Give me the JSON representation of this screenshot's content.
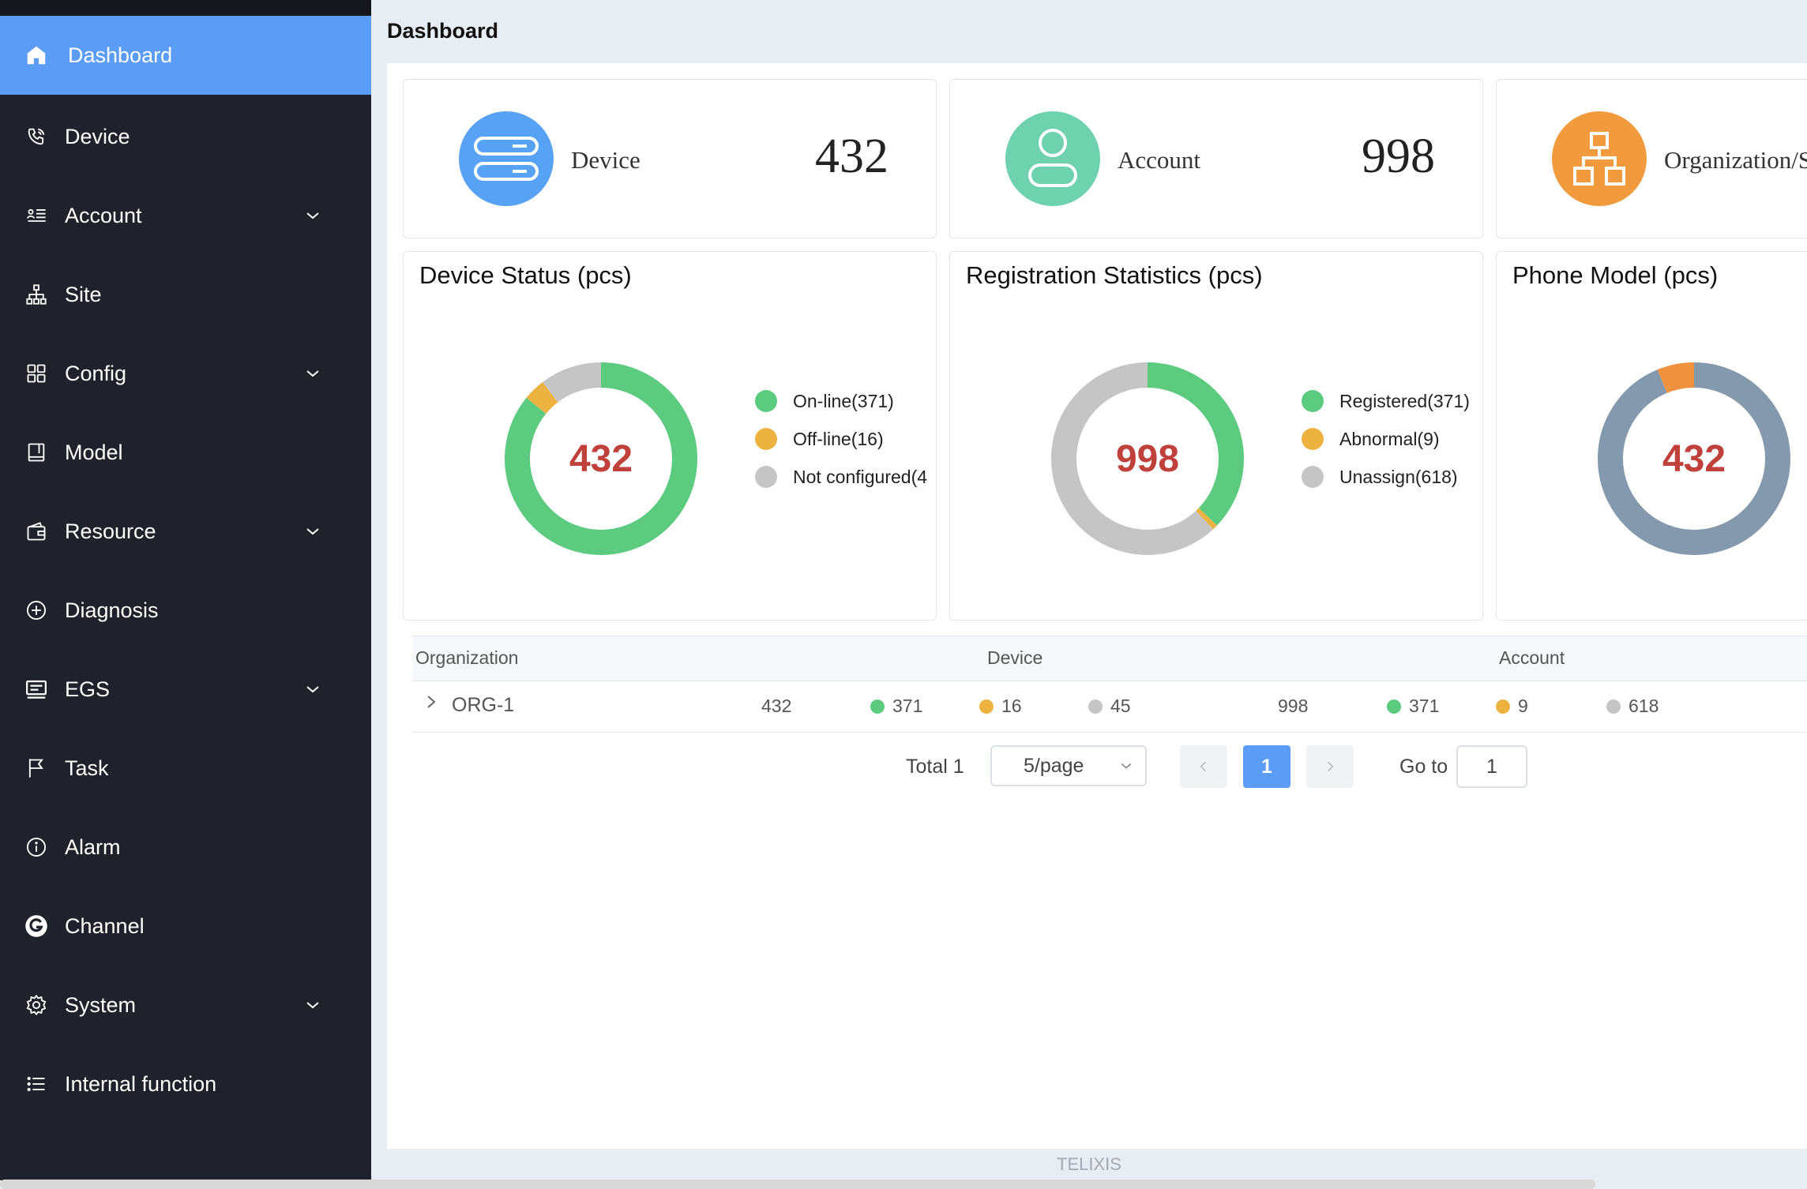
{
  "sidebar": {
    "items": [
      {
        "label": "Dashboard",
        "icon": "home-icon",
        "active": true,
        "has_children": false
      },
      {
        "label": "Device",
        "icon": "phone-icon",
        "active": false,
        "has_children": false
      },
      {
        "label": "Account",
        "icon": "account-list-icon",
        "active": false,
        "has_children": true
      },
      {
        "label": "Site",
        "icon": "sitemap-icon",
        "active": false,
        "has_children": false
      },
      {
        "label": "Config",
        "icon": "grid-icon",
        "active": false,
        "has_children": true
      },
      {
        "label": "Model",
        "icon": "book-icon",
        "active": false,
        "has_children": false
      },
      {
        "label": "Resource",
        "icon": "wallet-icon",
        "active": false,
        "has_children": true
      },
      {
        "label": "Diagnosis",
        "icon": "plus-circle-icon",
        "active": false,
        "has_children": false
      },
      {
        "label": "EGS",
        "icon": "server-icon",
        "active": false,
        "has_children": true
      },
      {
        "label": "Task",
        "icon": "flag-icon",
        "active": false,
        "has_children": false
      },
      {
        "label": "Alarm",
        "icon": "info-circle-icon",
        "active": false,
        "has_children": false
      },
      {
        "label": "Channel",
        "icon": "channel-logo-icon",
        "active": false,
        "has_children": false
      },
      {
        "label": "System",
        "icon": "gear-icon",
        "active": false,
        "has_children": true
      },
      {
        "label": "Internal function",
        "icon": "list-icon",
        "active": false,
        "has_children": false
      }
    ]
  },
  "header": {
    "title": "Dashboard"
  },
  "stats": [
    {
      "label": "Device",
      "value": "432",
      "color": "#57a2f5",
      "icon": "device-icon"
    },
    {
      "label": "Account",
      "value": "998",
      "color": "#6fd2ae",
      "icon": "user-icon"
    },
    {
      "label": "Organization/S",
      "value": "",
      "color": "#f29b3e",
      "icon": "organization-icon"
    }
  ],
  "colors": {
    "green": "#5ccb7f",
    "orange": "#ecb340",
    "gray": "#c5c5c5",
    "slate": "#8499ad",
    "center_text": "#c0413c",
    "accent": "#5b9cf7"
  },
  "charts": {
    "device_status": {
      "title": "Device Status (pcs)",
      "total": "432",
      "legend": [
        "On-line(371)",
        "Off-line(16)",
        "Not configured(4"
      ]
    },
    "registration": {
      "title": "Registration Statistics (pcs)",
      "total": "998",
      "legend": [
        "Registered(371)",
        "Abnormal(9)",
        "Unassign(618)"
      ]
    },
    "phone_model": {
      "title": "Phone Model (pcs)",
      "total": "432"
    }
  },
  "chart_data": [
    {
      "type": "pie",
      "title": "Device Status (pcs)",
      "categories": [
        "On-line",
        "Off-line",
        "Not configured"
      ],
      "values": [
        371,
        16,
        45
      ],
      "colors": [
        "#5ccb7f",
        "#ecb340",
        "#c5c5c5"
      ]
    },
    {
      "type": "pie",
      "title": "Registration Statistics (pcs)",
      "categories": [
        "Registered",
        "Abnormal",
        "Unassign"
      ],
      "values": [
        371,
        9,
        618
      ],
      "colors": [
        "#5ccb7f",
        "#ecb340",
        "#c5c5c5"
      ]
    },
    {
      "type": "pie",
      "title": "Phone Model (pcs)",
      "values": [
        405,
        27
      ],
      "colors": [
        "#8499ad",
        "#f0913f"
      ]
    }
  ],
  "table": {
    "headers": {
      "organization": "Organization",
      "device": "Device",
      "account": "Account"
    },
    "rows": [
      {
        "org": "ORG-1",
        "device_total": "432",
        "device_online": "371",
        "device_offline": "16",
        "device_unconfigured": "45",
        "account_total": "998",
        "account_registered": "371",
        "account_abnormal": "9",
        "account_unassigned": "618"
      }
    ]
  },
  "pagination": {
    "total": "Total 1",
    "page_size": "5/page",
    "current_page": "1",
    "goto_label": "Go to",
    "goto_value": "1"
  },
  "footer": {
    "brand": "TELIXIS"
  }
}
